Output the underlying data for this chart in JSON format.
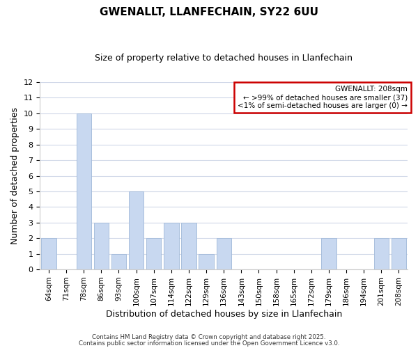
{
  "title": "GWENALLT, LLANFECHAIN, SY22 6UU",
  "subtitle": "Size of property relative to detached houses in Llanfechain",
  "xlabel": "Distribution of detached houses by size in Llanfechain",
  "ylabel": "Number of detached properties",
  "categories": [
    "64sqm",
    "71sqm",
    "78sqm",
    "86sqm",
    "93sqm",
    "100sqm",
    "107sqm",
    "114sqm",
    "122sqm",
    "129sqm",
    "136sqm",
    "143sqm",
    "150sqm",
    "158sqm",
    "165sqm",
    "172sqm",
    "179sqm",
    "186sqm",
    "194sqm",
    "201sqm",
    "208sqm"
  ],
  "values": [
    2,
    0,
    10,
    3,
    1,
    5,
    2,
    3,
    3,
    1,
    2,
    0,
    0,
    0,
    0,
    0,
    2,
    0,
    0,
    2,
    2
  ],
  "bar_color": "#c8d8f0",
  "bar_edge_color": "#a0b8d8",
  "annotation_box_color": "#ffffff",
  "annotation_box_edge_color": "#cc0000",
  "annotation_title": "GWENALLT: 208sqm",
  "annotation_line1": "← >99% of detached houses are smaller (37)",
  "annotation_line2": "<1% of semi-detached houses are larger (0) →",
  "ylim": [
    0,
    12
  ],
  "yticks": [
    0,
    1,
    2,
    3,
    4,
    5,
    6,
    7,
    8,
    9,
    10,
    11,
    12
  ],
  "background_color": "#ffffff",
  "grid_color": "#d0d8e8",
  "title_fontsize": 11,
  "subtitle_fontsize": 9,
  "footer_line1": "Contains HM Land Registry data © Crown copyright and database right 2025.",
  "footer_line2": "Contains public sector information licensed under the Open Government Licence v3.0."
}
